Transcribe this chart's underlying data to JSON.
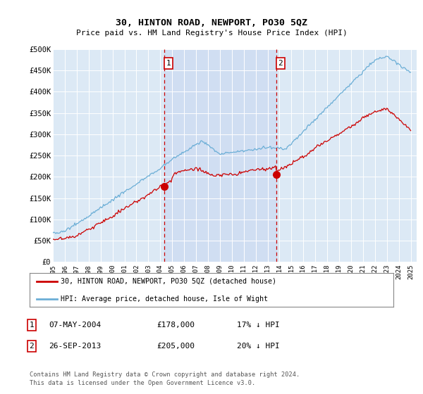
{
  "title": "30, HINTON ROAD, NEWPORT, PO30 5QZ",
  "subtitle": "Price paid vs. HM Land Registry's House Price Index (HPI)",
  "plot_bg_color": "#dce9f5",
  "ylim": [
    0,
    500000
  ],
  "yticks": [
    0,
    50000,
    100000,
    150000,
    200000,
    250000,
    300000,
    350000,
    400000,
    450000,
    500000
  ],
  "ytick_labels": [
    "£0",
    "£50K",
    "£100K",
    "£150K",
    "£200K",
    "£250K",
    "£300K",
    "£350K",
    "£400K",
    "£450K",
    "£500K"
  ],
  "hpi_color": "#6baed6",
  "price_color": "#cc0000",
  "dashed_line_color": "#cc0000",
  "shade_color": "#c8d8f0",
  "sale1_date": 2004.35,
  "sale1_price": 178000,
  "sale1_label": "1",
  "sale2_date": 2013.73,
  "sale2_price": 205000,
  "sale2_label": "2",
  "legend_entries": [
    "30, HINTON ROAD, NEWPORT, PO30 5QZ (detached house)",
    "HPI: Average price, detached house, Isle of Wight"
  ],
  "table_rows": [
    [
      "1",
      "07-MAY-2004",
      "£178,000",
      "17% ↓ HPI"
    ],
    [
      "2",
      "26-SEP-2013",
      "£205,000",
      "20% ↓ HPI"
    ]
  ],
  "footnote": "Contains HM Land Registry data © Crown copyright and database right 2024.\nThis data is licensed under the Open Government Licence v3.0."
}
